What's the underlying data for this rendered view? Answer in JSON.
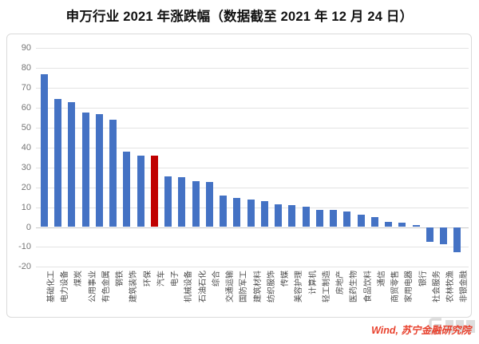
{
  "page": {
    "title": "申万行业 2021 年涨跌幅（数据截至 2021 年 12 月 24 日）",
    "source_note": "Wind, 苏宁金融研究院"
  },
  "colors": {
    "bar": "#4472C4",
    "highlight": "#C00000",
    "grid": "#E3E3E3",
    "zero_axis": "#C9C9C9",
    "panel_border": "#DADADA",
    "ytick_text": "#757575",
    "xlabel_text": "#4A4A4A",
    "source_text": "#E8402C"
  },
  "chart_data": {
    "type": "bar",
    "title": "申万行业 2021 年涨跌幅（数据截至 2021 年 12 月 24 日）",
    "categories": [
      "基础化工",
      "电力设备",
      "煤炭",
      "公用事业",
      "有色金属",
      "钢铁",
      "建筑装饰",
      "环保",
      "汽车",
      "电子",
      "机械设备",
      "石油石化",
      "综合",
      "交通运输",
      "国防军工",
      "建筑材料",
      "纺织服饰",
      "传媒",
      "美容护理",
      "计算机",
      "轻工制造",
      "房地产",
      "医药生物",
      "食品饮料",
      "通信",
      "商贸零售",
      "家用电器",
      "银行",
      "社会服务",
      "农林牧渔",
      "非银金融"
    ],
    "values": [
      77,
      64.5,
      63,
      57.5,
      57,
      54,
      38,
      36.1,
      35.8,
      25.4,
      25.2,
      23,
      22.5,
      15.7,
      14.7,
      14,
      13.2,
      11.5,
      11,
      10.1,
      8.8,
      8.5,
      7.7,
      6.1,
      5.2,
      2.7,
      2.3,
      1.1,
      -7.6,
      -8.8,
      -12.7
    ],
    "bar_color": "#4472C4",
    "highlight_category": "汽车",
    "highlight_color": "#C00000",
    "ylabel": "",
    "xlabel": "",
    "ylim": [
      -20,
      90
    ],
    "ytick_step": 10,
    "yticks": [
      90,
      80,
      70,
      60,
      50,
      40,
      30,
      20,
      10,
      0,
      -10,
      -20
    ],
    "grid": true,
    "legend": false,
    "source": "Wind, 苏宁金融研究院"
  }
}
